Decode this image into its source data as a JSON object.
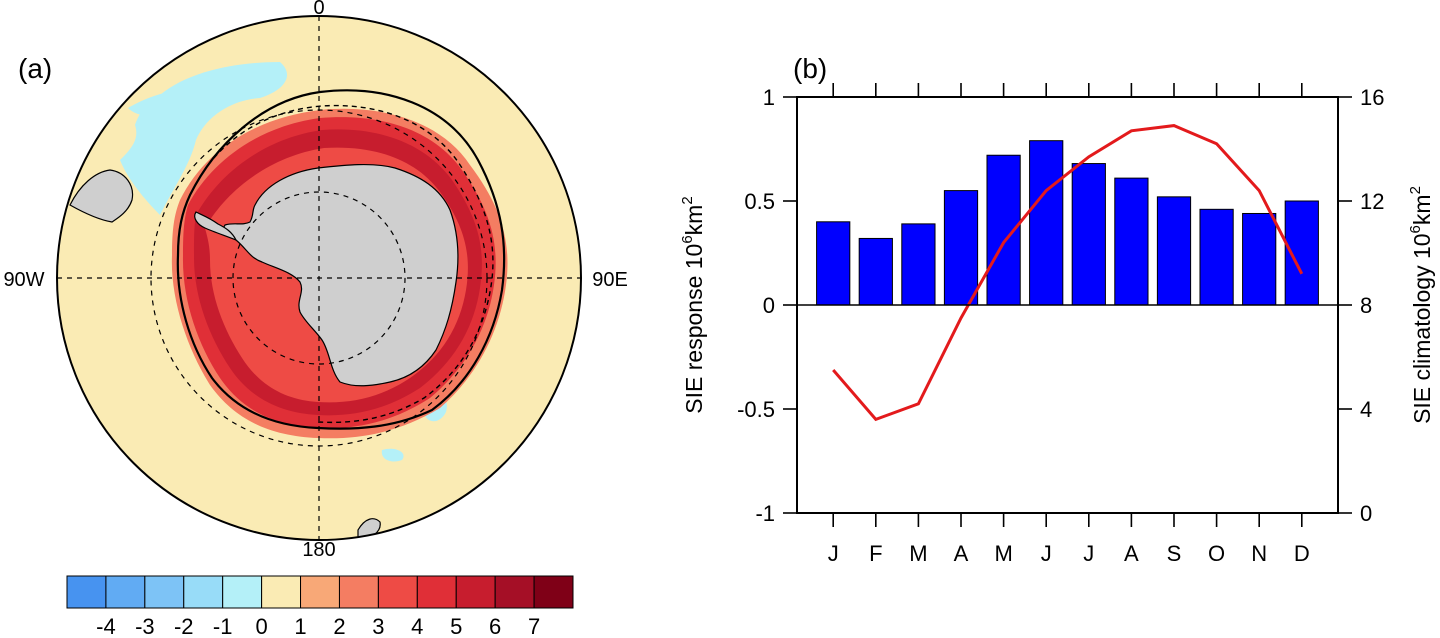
{
  "chart_data": [
    {
      "type": "polar-map",
      "panel_label": "(a)",
      "meridian_labels": {
        "top": "0",
        "bottom": "180",
        "left": "90W",
        "right": "90E"
      },
      "colors": {
        "ocean": "#FAEBB4",
        "land": "#CFCFCF",
        "positive_response": [
          "#F8A877",
          "#F47D62",
          "#EE4B45",
          "#E02F37",
          "#C71D2E",
          "#A50F26",
          "#7F0017"
        ],
        "negative_response": [
          "#4793F0",
          "#61ABF3",
          "#7DC3F6",
          "#98DCF8",
          "#B4F0F8"
        ]
      },
      "colorbar": {
        "labels": [
          "-4",
          "-3",
          "-2",
          "-1",
          "0",
          "1",
          "2",
          "3",
          "4",
          "5",
          "6",
          "7"
        ],
        "colors": [
          "#4793F0",
          "#61ABF3",
          "#7DC3F6",
          "#98DCF8",
          "#B4F0F8",
          "#FAEBB4",
          "#F8A877",
          "#F47D62",
          "#EE4B45",
          "#E02F37",
          "#C71D2E",
          "#A50F26",
          "#7F0017"
        ]
      }
    },
    {
      "type": "bar-line",
      "panel_label": "(b)",
      "categories": [
        "J",
        "F",
        "M",
        "A",
        "M",
        "J",
        "J",
        "A",
        "S",
        "O",
        "N",
        "D"
      ],
      "series": [
        {
          "type": "bar",
          "values": [
            0.4,
            0.32,
            0.39,
            0.55,
            0.72,
            0.79,
            0.68,
            0.61,
            0.52,
            0.46,
            0.44,
            0.5
          ],
          "color": "#0000FF",
          "axis": "left"
        },
        {
          "type": "line",
          "values": [
            5.5,
            3.6,
            4.2,
            7.5,
            10.4,
            12.4,
            13.7,
            14.7,
            14.9,
            14.2,
            12.4,
            9.2
          ],
          "color": "#E31A1C",
          "axis": "right"
        }
      ],
      "y_left": {
        "label": "SIE response 10",
        "label_sup": "6",
        "label_suffix": "km",
        "label_sup2": "2",
        "range": [
          -1,
          1
        ],
        "ticks": [
          "-1",
          "-0.5",
          "0",
          "0.5",
          "1"
        ]
      },
      "y_right": {
        "label": "SIE climatology 10",
        "label_sup": "6",
        "label_suffix": "km",
        "label_sup2": "2",
        "range": [
          0,
          16
        ],
        "ticks": [
          "0",
          "4",
          "8",
          "12",
          "16"
        ]
      }
    }
  ]
}
